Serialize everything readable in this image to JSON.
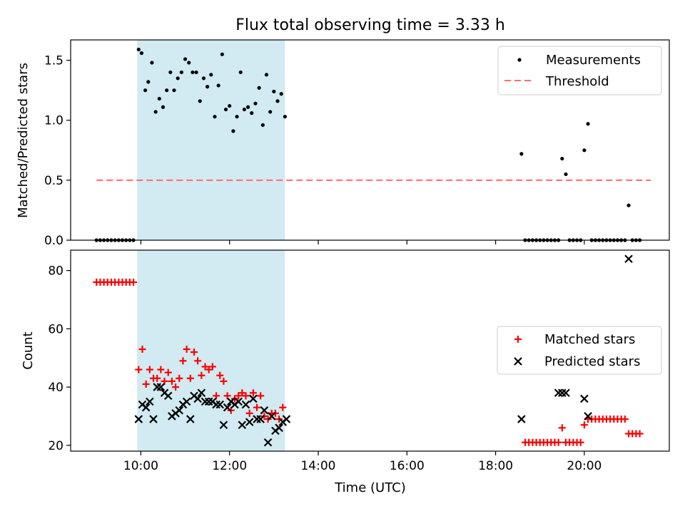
{
  "figure": {
    "title": "Flux total observing time = 3.33 h"
  },
  "colors": {
    "shade": "#add8e6",
    "threshold": "#ff6b6b",
    "matched": "#ff0000",
    "predicted": "#000000",
    "measurement": "#000000"
  },
  "chart_data": [
    {
      "type": "scatter",
      "panel": "top",
      "ylabel": "Matched/Predicted stars",
      "xlim": [
        "08:25",
        "21:55"
      ],
      "ylim": [
        0,
        1.67
      ],
      "y_ticks": [
        0,
        0.5,
        1.0,
        1.5
      ],
      "y_tick_labels": [
        "0.0",
        "0.5",
        "1.0",
        "1.5"
      ],
      "shaded_interval": [
        "09:55",
        "13:15"
      ],
      "legend": {
        "position": "upper-right",
        "entries": [
          "Measurements",
          "Threshold"
        ]
      },
      "threshold": {
        "name": "Threshold",
        "y": 0.5,
        "x_range": [
          "09:00",
          "21:30"
        ],
        "style": "dashed"
      },
      "series": [
        {
          "name": "Measurements",
          "marker": "dot",
          "points": [
            [
              "09:00",
              0
            ],
            [
              "09:05",
              0
            ],
            [
              "09:10",
              0
            ],
            [
              "09:15",
              0
            ],
            [
              "09:20",
              0
            ],
            [
              "09:25",
              0
            ],
            [
              "09:30",
              0
            ],
            [
              "09:35",
              0
            ],
            [
              "09:40",
              0
            ],
            [
              "09:45",
              0
            ],
            [
              "09:50",
              0
            ],
            [
              "09:57",
              1.59
            ],
            [
              "10:01",
              1.56
            ],
            [
              "10:06",
              1.25
            ],
            [
              "10:10",
              1.32
            ],
            [
              "10:15",
              1.48
            ],
            [
              "10:20",
              1.07
            ],
            [
              "10:25",
              1.18
            ],
            [
              "10:30",
              1.11
            ],
            [
              "10:35",
              1.25
            ],
            [
              "10:40",
              1.4
            ],
            [
              "10:45",
              1.25
            ],
            [
              "10:50",
              1.35
            ],
            [
              "10:55",
              1.4
            ],
            [
              "11:00",
              1.51
            ],
            [
              "11:05",
              1.48
            ],
            [
              "11:10",
              1.4
            ],
            [
              "11:15",
              1.4
            ],
            [
              "11:20",
              1.16
            ],
            [
              "11:25",
              1.35
            ],
            [
              "11:30",
              1.28
            ],
            [
              "11:35",
              1.38
            ],
            [
              "11:40",
              1.03
            ],
            [
              "11:45",
              1.29
            ],
            [
              "11:50",
              1.55
            ],
            [
              "11:55",
              1.09
            ],
            [
              "12:00",
              1.12
            ],
            [
              "12:05",
              0.91
            ],
            [
              "12:10",
              1.03
            ],
            [
              "12:15",
              1.4
            ],
            [
              "12:20",
              1.09
            ],
            [
              "12:25",
              1.11
            ],
            [
              "12:30",
              1.06
            ],
            [
              "12:35",
              1.14
            ],
            [
              "12:40",
              1.27
            ],
            [
              "12:45",
              0.96
            ],
            [
              "12:50",
              1.38
            ],
            [
              "12:55",
              1.07
            ],
            [
              "13:00",
              1.24
            ],
            [
              "13:05",
              1.16
            ],
            [
              "13:10",
              1.22
            ],
            [
              "13:15",
              1.03
            ],
            [
              "18:35",
              0.72
            ],
            [
              "18:40",
              0
            ],
            [
              "18:45",
              0
            ],
            [
              "18:50",
              0
            ],
            [
              "18:55",
              0
            ],
            [
              "19:00",
              0
            ],
            [
              "19:05",
              0
            ],
            [
              "19:10",
              0
            ],
            [
              "19:15",
              0
            ],
            [
              "19:20",
              0
            ],
            [
              "19:25",
              0
            ],
            [
              "19:30",
              0.68
            ],
            [
              "19:35",
              0.55
            ],
            [
              "19:40",
              0
            ],
            [
              "19:45",
              0
            ],
            [
              "19:50",
              0
            ],
            [
              "19:55",
              0
            ],
            [
              "20:00",
              0.75
            ],
            [
              "20:05",
              0.97
            ],
            [
              "20:10",
              0
            ],
            [
              "20:15",
              0
            ],
            [
              "20:20",
              0
            ],
            [
              "20:25",
              0
            ],
            [
              "20:30",
              0
            ],
            [
              "20:35",
              0
            ],
            [
              "20:40",
              0
            ],
            [
              "20:45",
              0
            ],
            [
              "20:50",
              0
            ],
            [
              "20:55",
              0
            ],
            [
              "21:00",
              0.29
            ],
            [
              "21:05",
              0
            ],
            [
              "21:10",
              0
            ],
            [
              "21:15",
              0
            ]
          ]
        }
      ]
    },
    {
      "type": "scatter",
      "panel": "bottom",
      "xlabel": "Time (UTC)",
      "ylabel": "Count",
      "xlim": [
        "08:25",
        "21:55"
      ],
      "ylim": [
        18,
        87
      ],
      "x_ticks": [
        "10:00",
        "12:00",
        "14:00",
        "16:00",
        "18:00",
        "20:00"
      ],
      "y_ticks": [
        20,
        40,
        60,
        80
      ],
      "shaded_interval": [
        "09:55",
        "13:15"
      ],
      "legend": {
        "position": "center-right",
        "entries": [
          "Matched stars",
          "Predicted stars"
        ]
      },
      "series": [
        {
          "name": "Matched stars",
          "marker": "plus",
          "points": [
            [
              "09:00",
              76
            ],
            [
              "09:05",
              76
            ],
            [
              "09:10",
              76
            ],
            [
              "09:15",
              76
            ],
            [
              "09:20",
              76
            ],
            [
              "09:25",
              76
            ],
            [
              "09:30",
              76
            ],
            [
              "09:35",
              76
            ],
            [
              "09:40",
              76
            ],
            [
              "09:45",
              76
            ],
            [
              "09:50",
              76
            ],
            [
              "09:57",
              46
            ],
            [
              "10:02",
              53
            ],
            [
              "10:07",
              41
            ],
            [
              "10:12",
              46
            ],
            [
              "10:17",
              43
            ],
            [
              "10:22",
              43
            ],
            [
              "10:27",
              46
            ],
            [
              "10:32",
              42
            ],
            [
              "10:37",
              45
            ],
            [
              "10:42",
              42
            ],
            [
              "10:47",
              40
            ],
            [
              "10:52",
              43
            ],
            [
              "10:57",
              49
            ],
            [
              "11:02",
              53
            ],
            [
              "11:07",
              43
            ],
            [
              "11:12",
              52
            ],
            [
              "11:17",
              49
            ],
            [
              "11:22",
              44
            ],
            [
              "11:27",
              47
            ],
            [
              "11:32",
              46
            ],
            [
              "11:37",
              47
            ],
            [
              "11:42",
              37
            ],
            [
              "11:47",
              44
            ],
            [
              "11:52",
              42
            ],
            [
              "11:57",
              37
            ],
            [
              "12:02",
              32
            ],
            [
              "12:07",
              36
            ],
            [
              "12:12",
              37
            ],
            [
              "12:17",
              38
            ],
            [
              "12:22",
              37
            ],
            [
              "12:27",
              31
            ],
            [
              "12:32",
              38
            ],
            [
              "12:37",
              33
            ],
            [
              "12:42",
              37
            ],
            [
              "12:47",
              30
            ],
            [
              "12:52",
              29
            ],
            [
              "12:57",
              31
            ],
            [
              "13:02",
              31
            ],
            [
              "13:07",
              29
            ],
            [
              "13:12",
              33
            ],
            [
              "18:40",
              21
            ],
            [
              "18:45",
              21
            ],
            [
              "18:50",
              21
            ],
            [
              "18:55",
              21
            ],
            [
              "19:00",
              21
            ],
            [
              "19:05",
              21
            ],
            [
              "19:10",
              21
            ],
            [
              "19:15",
              21
            ],
            [
              "19:20",
              21
            ],
            [
              "19:25",
              21
            ],
            [
              "19:30",
              26
            ],
            [
              "19:35",
              21
            ],
            [
              "19:40",
              21
            ],
            [
              "19:45",
              21
            ],
            [
              "19:50",
              21
            ],
            [
              "19:55",
              21
            ],
            [
              "20:00",
              27
            ],
            [
              "20:05",
              29
            ],
            [
              "20:10",
              29
            ],
            [
              "20:15",
              29
            ],
            [
              "20:20",
              29
            ],
            [
              "20:25",
              29
            ],
            [
              "20:30",
              29
            ],
            [
              "20:35",
              29
            ],
            [
              "20:40",
              29
            ],
            [
              "20:45",
              29
            ],
            [
              "20:50",
              29
            ],
            [
              "20:55",
              29
            ],
            [
              "21:00",
              24
            ],
            [
              "21:05",
              24
            ],
            [
              "21:10",
              24
            ],
            [
              "21:15",
              24
            ]
          ]
        },
        {
          "name": "Predicted stars",
          "marker": "x",
          "points": [
            [
              "09:57",
              29
            ],
            [
              "10:02",
              34
            ],
            [
              "10:07",
              33
            ],
            [
              "10:12",
              35
            ],
            [
              "10:17",
              29
            ],
            [
              "10:22",
              40
            ],
            [
              "10:27",
              40
            ],
            [
              "10:32",
              38
            ],
            [
              "10:37",
              37
            ],
            [
              "10:42",
              30
            ],
            [
              "10:47",
              31
            ],
            [
              "10:52",
              32
            ],
            [
              "10:57",
              34
            ],
            [
              "11:02",
              35
            ],
            [
              "11:07",
              29
            ],
            [
              "11:12",
              37
            ],
            [
              "11:17",
              36
            ],
            [
              "11:22",
              38
            ],
            [
              "11:27",
              35
            ],
            [
              "11:32",
              35
            ],
            [
              "11:37",
              35
            ],
            [
              "11:42",
              34
            ],
            [
              "11:47",
              34
            ],
            [
              "11:52",
              27
            ],
            [
              "11:57",
              33
            ],
            [
              "12:02",
              35
            ],
            [
              "12:07",
              34
            ],
            [
              "12:12",
              35
            ],
            [
              "12:17",
              27
            ],
            [
              "12:22",
              34
            ],
            [
              "12:27",
              28
            ],
            [
              "12:32",
              36
            ],
            [
              "12:37",
              29
            ],
            [
              "12:42",
              29
            ],
            [
              "12:47",
              32
            ],
            [
              "12:52",
              21
            ],
            [
              "12:57",
              30
            ],
            [
              "13:02",
              25
            ],
            [
              "13:07",
              26
            ],
            [
              "13:12",
              28
            ],
            [
              "13:17",
              29
            ],
            [
              "18:35",
              29
            ],
            [
              "19:25",
              38
            ],
            [
              "19:30",
              38
            ],
            [
              "19:35",
              38
            ],
            [
              "20:00",
              36
            ],
            [
              "20:05",
              30
            ],
            [
              "21:00",
              84
            ]
          ]
        }
      ]
    }
  ]
}
